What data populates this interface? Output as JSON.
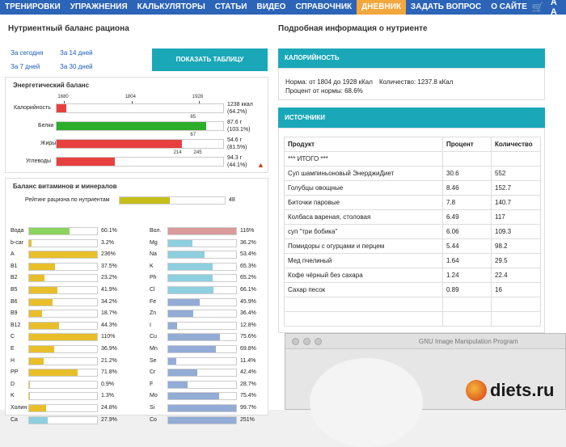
{
  "nav": {
    "items": [
      "ТРЕНИРОВКИ",
      "УПРАЖНЕНИЯ",
      "КАЛЬКУЛЯТОРЫ",
      "СТАТЬИ",
      "ВИДЕО",
      "СПРАВОЧНИК",
      "ДНЕВНИК",
      "ЗАДАТЬ ВОПРОС",
      "О САЙТЕ"
    ],
    "active_index": 6,
    "font_icon_label": "A A"
  },
  "left": {
    "title": "Нутриентный баланс рациона",
    "links": [
      "За сегодня",
      "За 14 дней",
      "За 7 дней",
      "За 30 дней"
    ],
    "show_table_button": "ПОКАЗАТЬ ТАБЛИЦУ"
  },
  "energy": {
    "title": "Энергетический баланс",
    "ticks_top": [
      "1680",
      "1804",
      "1928"
    ],
    "rows": [
      {
        "label": "Калорийность",
        "fill": 0.06,
        "color": "#e84040",
        "val1": "1238 ккал",
        "val2": "(64.2%)"
      },
      {
        "label": "Белки",
        "fill": 0.9,
        "color": "#2cad2c",
        "val1": "87.6 г",
        "val2": "(103.1%)",
        "tick": "85"
      },
      {
        "label": "Жиры",
        "fill": 0.75,
        "color": "#e84040",
        "val1": "54.6 г",
        "val2": "(81.5%)",
        "tick": "67"
      },
      {
        "label": "Углеводы",
        "fill": 0.35,
        "color": "#e84040",
        "val1": "94.3 г",
        "val2": "(44.1%)",
        "tick_a": "214",
        "tick_b": "245"
      }
    ]
  },
  "vitamins": {
    "title": "Баланс витаминов и минералов",
    "rating_label": "Рейтинг рациона по нутриентам",
    "rating_value": "48",
    "rating_fill": 0.48,
    "left_col": [
      {
        "n": "Вода",
        "p": "60.1%",
        "f": 0.6,
        "c": "#8dd35f"
      },
      {
        "n": "b-car",
        "p": "3.2%",
        "f": 0.03,
        "c": "#e8bf2a"
      },
      {
        "n": "A",
        "p": "236%",
        "f": 1,
        "c": "#e8bf2a"
      },
      {
        "n": "B1",
        "p": "37.5%",
        "f": 0.375,
        "c": "#e8bf2a"
      },
      {
        "n": "B2",
        "p": "23.2%",
        "f": 0.232,
        "c": "#e8bf2a"
      },
      {
        "n": "B5",
        "p": "41.9%",
        "f": 0.419,
        "c": "#e8bf2a"
      },
      {
        "n": "B6",
        "p": "34.2%",
        "f": 0.342,
        "c": "#e8bf2a"
      },
      {
        "n": "B9",
        "p": "18.7%",
        "f": 0.187,
        "c": "#e8bf2a"
      },
      {
        "n": "B12",
        "p": "44.3%",
        "f": 0.443,
        "c": "#e8bf2a"
      },
      {
        "n": "C",
        "p": "110%",
        "f": 1,
        "c": "#e8bf2a"
      },
      {
        "n": "E",
        "p": "36.9%",
        "f": 0.369,
        "c": "#e8bf2a"
      },
      {
        "n": "H",
        "p": "21.2%",
        "f": 0.212,
        "c": "#e8bf2a"
      },
      {
        "n": "PP",
        "p": "71.8%",
        "f": 0.718,
        "c": "#e8bf2a"
      },
      {
        "n": "D",
        "p": "0.9%",
        "f": 0.01,
        "c": "#e8bf2a"
      },
      {
        "n": "K",
        "p": "1.3%",
        "f": 0.013,
        "c": "#e8bf2a"
      },
      {
        "n": "Холин",
        "p": "24.8%",
        "f": 0.248,
        "c": "#e8bf2a"
      },
      {
        "n": "Ca",
        "p": "27.9%",
        "f": 0.279,
        "c": "#8ecfe0"
      }
    ],
    "right_col": [
      {
        "n": "Вол.",
        "p": "116%",
        "f": 1,
        "c": "#d99a9a"
      },
      {
        "n": "Mg",
        "p": "36.2%",
        "f": 0.362,
        "c": "#8ecfe0"
      },
      {
        "n": "Na",
        "p": "53.4%",
        "f": 0.534,
        "c": "#8ecfe0"
      },
      {
        "n": "K",
        "p": "65.3%",
        "f": 0.653,
        "c": "#8ecfe0"
      },
      {
        "n": "Ph",
        "p": "65.2%",
        "f": 0.652,
        "c": "#8ecfe0"
      },
      {
        "n": "Cl",
        "p": "66.1%",
        "f": 0.661,
        "c": "#8ecfe0"
      },
      {
        "n": "Fe",
        "p": "45.9%",
        "f": 0.459,
        "c": "#92acd6"
      },
      {
        "n": "Zn",
        "p": "36.4%",
        "f": 0.364,
        "c": "#92acd6"
      },
      {
        "n": "I",
        "p": "12.8%",
        "f": 0.128,
        "c": "#92acd6"
      },
      {
        "n": "Cu",
        "p": "75.6%",
        "f": 0.756,
        "c": "#92acd6"
      },
      {
        "n": "Mn",
        "p": "69.8%",
        "f": 0.698,
        "c": "#92acd6"
      },
      {
        "n": "Se",
        "p": "11.4%",
        "f": 0.114,
        "c": "#92acd6"
      },
      {
        "n": "Cr",
        "p": "42.4%",
        "f": 0.424,
        "c": "#92acd6"
      },
      {
        "n": "F",
        "p": "28.7%",
        "f": 0.287,
        "c": "#92acd6"
      },
      {
        "n": "Mo",
        "p": "75.4%",
        "f": 0.754,
        "c": "#92acd6"
      },
      {
        "n": "Si",
        "p": "99.7%",
        "f": 0.997,
        "c": "#92acd6"
      },
      {
        "n": "Co",
        "p": "251%",
        "f": 1,
        "c": "#92acd6"
      }
    ]
  },
  "right": {
    "title": "Подробная информация о нутриенте",
    "cal_header": "КАЛОРИЙНОСТЬ",
    "cal_line1a": "Норма: от 1804 до 1928 кКал",
    "cal_line1b": "Количество: 1237.8 кКал",
    "cal_line2": "Процент от нормы: 68.6%",
    "sources_header": "ИСТОЧНИКИ",
    "table_headers": [
      "Продукт",
      "Процент",
      "Количество"
    ],
    "rows": [
      [
        "*** ИТОГО ***",
        "",
        ""
      ],
      [
        "Суп шампиньоновый ЭнерджиДиет",
        "30.6",
        "552"
      ],
      [
        "Голубцы овощные",
        "8.46",
        "152.7"
      ],
      [
        "Биточки паровые",
        "7.8",
        "140.7"
      ],
      [
        "Колбаса вареная, столовая",
        "6.49",
        "117"
      ],
      [
        "суп \"три бобика\"",
        "6.06",
        "109.3"
      ],
      [
        "Помидоры с огурцами и перцем",
        "5.44",
        "98.2"
      ],
      [
        "Мед пчелиный",
        "1.64",
        "29.5"
      ],
      [
        "Кофе чёрный без сахара",
        "1.24",
        "22.4"
      ],
      [
        "Сахар песок",
        "0.89",
        "16"
      ]
    ]
  },
  "gimp": {
    "title": "GNU Image Manipulation Program"
  },
  "watermark": "diets.ru"
}
